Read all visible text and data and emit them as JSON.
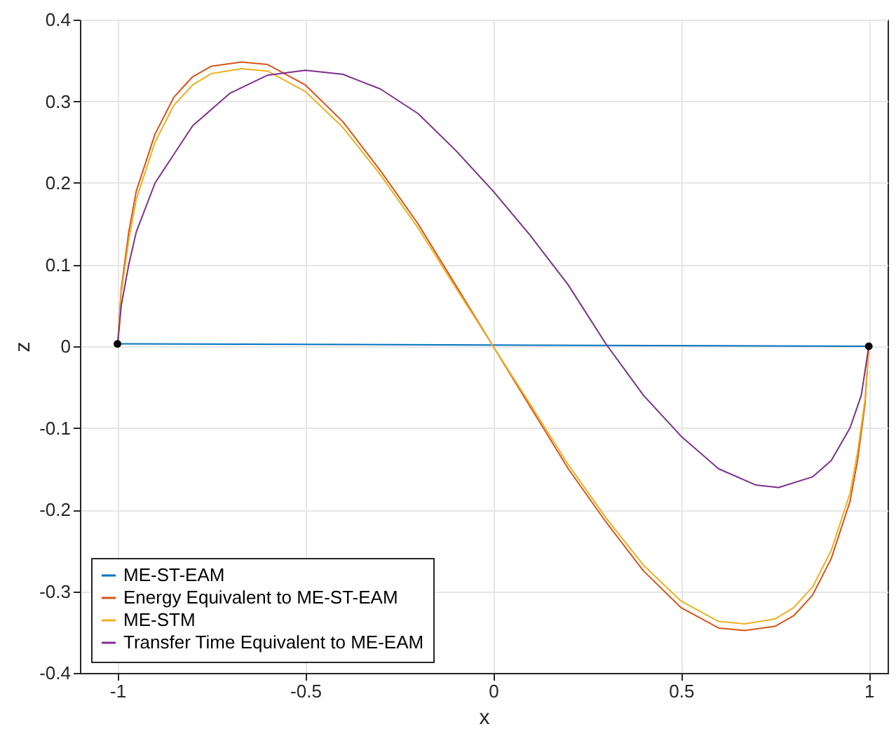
{
  "chart_data": {
    "type": "line",
    "xlabel": "x",
    "ylabel": "z",
    "xlim": [
      -1.1,
      1.05
    ],
    "ylim": [
      -0.4,
      0.4
    ],
    "xticks": [
      -1,
      -0.5,
      0,
      0.5,
      1
    ],
    "yticks": [
      -0.4,
      -0.3,
      -0.2,
      -0.1,
      0,
      0.1,
      0.2,
      0.3,
      0.4
    ],
    "grid": true,
    "legend": "bottom left",
    "marker": "none",
    "series": [
      {
        "name": "ME-ST-EAM",
        "color": "#0072bd",
        "x": [
          -1,
          1
        ],
        "values": [
          0.003,
          0
        ]
      },
      {
        "name": "Energy Equivalent to ME-ST-EAM",
        "color": "#d95319",
        "x": [
          -1,
          -0.99,
          -0.97,
          -0.95,
          -0.9,
          -0.85,
          -0.8,
          -0.75,
          -0.67,
          -0.6,
          -0.5,
          -0.4,
          -0.3,
          -0.2,
          -0.1,
          0,
          0.1,
          0.2,
          0.3,
          0.4,
          0.5,
          0.6,
          0.67,
          0.75,
          0.8,
          0.85,
          0.9,
          0.95,
          0.97,
          0.99,
          1
        ],
        "values": [
          0,
          0.07,
          0.14,
          0.19,
          0.26,
          0.305,
          0.33,
          0.343,
          0.348,
          0.345,
          0.32,
          0.275,
          0.215,
          0.15,
          0.075,
          0,
          -0.075,
          -0.15,
          -0.215,
          -0.275,
          -0.32,
          -0.345,
          -0.348,
          -0.343,
          -0.33,
          -0.305,
          -0.26,
          -0.19,
          -0.14,
          -0.07,
          0
        ]
      },
      {
        "name": "ME-STM",
        "color": "#edb120",
        "x": [
          -1,
          -0.99,
          -0.97,
          -0.95,
          -0.9,
          -0.85,
          -0.8,
          -0.75,
          -0.67,
          -0.6,
          -0.5,
          -0.4,
          -0.3,
          -0.2,
          -0.1,
          0,
          0.1,
          0.2,
          0.3,
          0.4,
          0.5,
          0.6,
          0.67,
          0.75,
          0.8,
          0.85,
          0.9,
          0.95,
          0.97,
          0.99,
          1
        ],
        "values": [
          0,
          0.065,
          0.13,
          0.18,
          0.25,
          0.295,
          0.32,
          0.334,
          0.34,
          0.337,
          0.312,
          0.268,
          0.21,
          0.145,
          0.072,
          0,
          -0.072,
          -0.145,
          -0.21,
          -0.268,
          -0.312,
          -0.337,
          -0.34,
          -0.334,
          -0.32,
          -0.295,
          -0.25,
          -0.18,
          -0.13,
          -0.065,
          0
        ]
      },
      {
        "name": "Transfer Time Equivalent to ME-EAM",
        "color": "#7e2f8e",
        "x": [
          -1,
          -0.99,
          -0.97,
          -0.95,
          -0.9,
          -0.8,
          -0.7,
          -0.6,
          -0.5,
          -0.4,
          -0.3,
          -0.2,
          -0.1,
          0,
          0.1,
          0.2,
          0.3,
          0.4,
          0.5,
          0.6,
          0.7,
          0.76,
          0.85,
          0.9,
          0.95,
          0.98,
          1
        ],
        "values": [
          0,
          0.05,
          0.1,
          0.14,
          0.2,
          0.27,
          0.31,
          0.332,
          0.338,
          0.333,
          0.315,
          0.285,
          0.24,
          0.19,
          0.135,
          0.075,
          0.003,
          -0.06,
          -0.11,
          -0.15,
          -0.17,
          -0.173,
          -0.16,
          -0.14,
          -0.1,
          -0.06,
          0
        ]
      },
      {
        "type": "scatter",
        "marker": "circle",
        "color": "#000000",
        "x": [
          -1,
          1
        ],
        "values": [
          0.003,
          0
        ]
      }
    ]
  }
}
